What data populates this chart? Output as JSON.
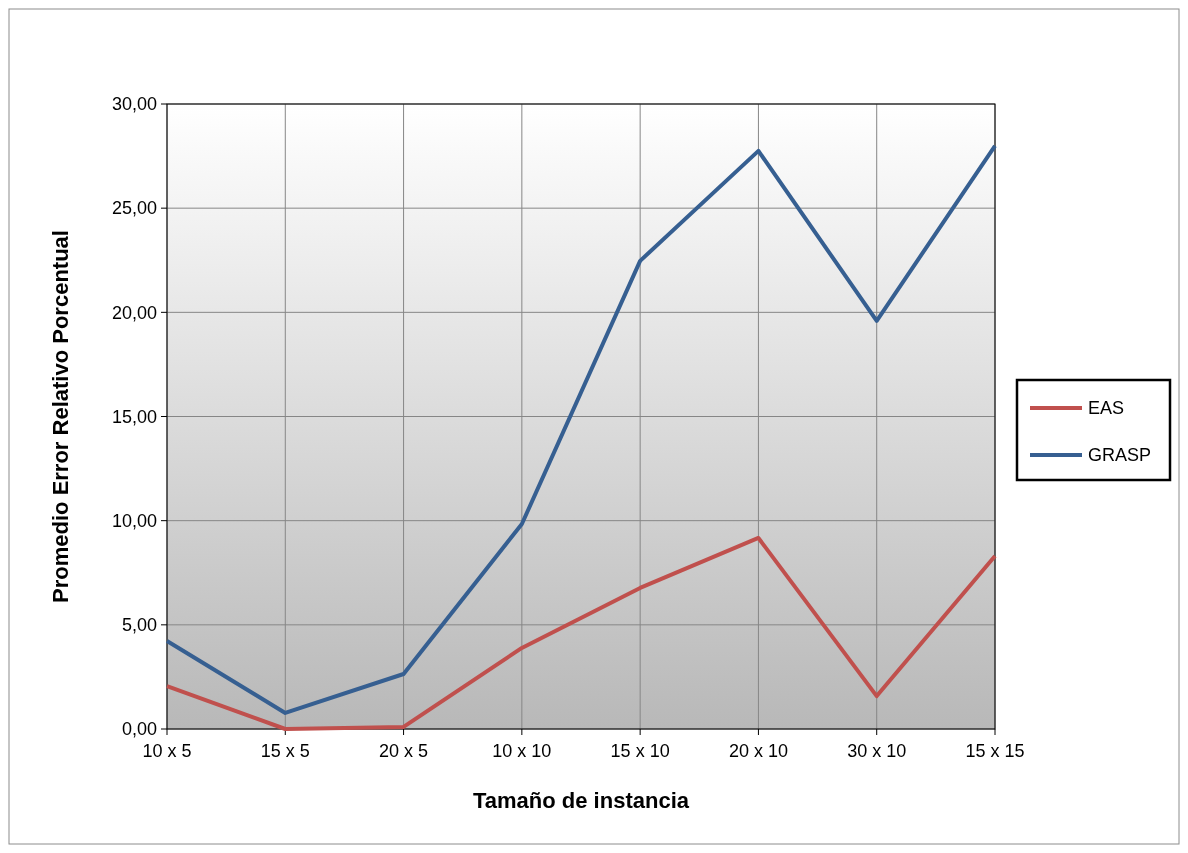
{
  "chart_data": {
    "type": "line",
    "xlabel": "Tamaño de instancia",
    "ylabel": "Promedio Error Relativo Porcentual",
    "categories": [
      "10 x 5",
      "15 x 5",
      "20 x 5",
      "10 x 10",
      "15 x 10",
      "20 x 10",
      "30 x 10",
      "15 x 15"
    ],
    "series": [
      {
        "name": "EAS",
        "color": "#c0504d",
        "values": [
          2.06,
          0,
          0.1,
          3.89,
          6.77,
          9.17,
          1.58,
          8.3
        ]
      },
      {
        "name": "GRASP",
        "color": "#365f91",
        "values": [
          4.22,
          0.77,
          2.64,
          9.84,
          22.47,
          27.75,
          19.59,
          27.99
        ]
      }
    ],
    "ylim": [
      0,
      30
    ],
    "yticks": [
      {
        "value": 0,
        "label": "0,00"
      },
      {
        "value": 5,
        "label": "5,00"
      },
      {
        "value": 10,
        "label": "10,00"
      },
      {
        "value": 15,
        "label": "15,00"
      },
      {
        "value": 20,
        "label": "20,00"
      },
      {
        "value": 25,
        "label": "25,00"
      },
      {
        "value": 30,
        "label": "30,00"
      }
    ],
    "grid": true,
    "legend": "right",
    "marker": "none",
    "line_style": "solid"
  }
}
